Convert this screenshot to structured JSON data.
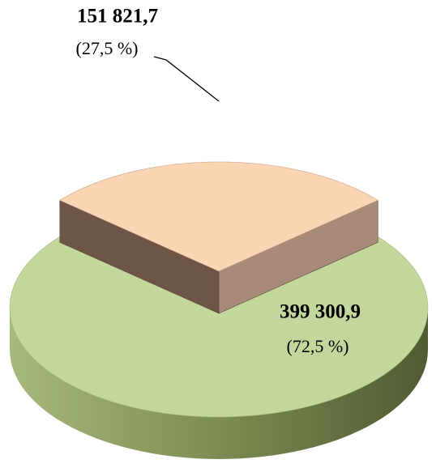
{
  "chart_data": {
    "type": "pie",
    "values": [
      151821.7,
      399300.9
    ],
    "value_labels": [
      "151 821,7",
      "399 300,9"
    ],
    "percents": [
      27.5,
      72.5
    ],
    "percent_labels": [
      "(27,5 %)",
      "(72,5 %)"
    ],
    "colors": [
      "#fcd5b5",
      "#c3d69b"
    ],
    "side_colors": [
      "#7a5f4f",
      "#8a9a5e"
    ]
  }
}
